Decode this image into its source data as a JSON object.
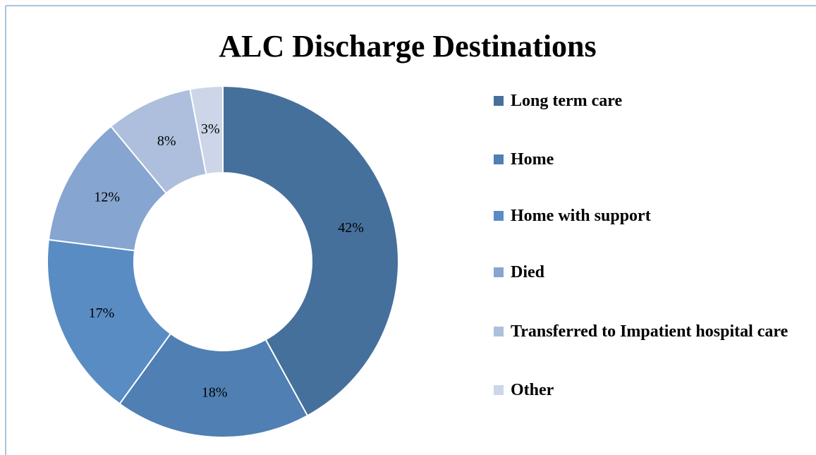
{
  "chart_data": {
    "type": "donut",
    "title": "ALC Discharge Destinations",
    "categories": [
      "Long term care",
      "Home",
      "Home with support",
      "Died",
      "Transferred to Impatient hospital care",
      "Other"
    ],
    "values": [
      42,
      18,
      17,
      12,
      8,
      3
    ],
    "value_labels": [
      "42%",
      "18%",
      "17%",
      "12%",
      "8%",
      "3%"
    ],
    "colors": [
      "#46709c",
      "#4f7fb3",
      "#5a8cc4",
      "#86a5d0",
      "#adbfdc",
      "#ccd6e8"
    ],
    "legend": "right"
  }
}
